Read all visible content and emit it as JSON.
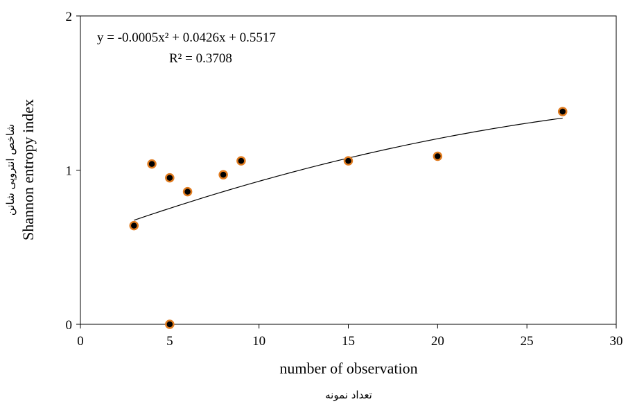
{
  "chart_data": {
    "type": "scatter",
    "xlabel": "number of observation",
    "xlabel_fa": "تعداد نمونه",
    "ylabel": "Shannon entropy index",
    "ylabel_fa": "شاخص انتروپی شانن",
    "xlim": [
      0,
      30
    ],
    "ylim": [
      0,
      2
    ],
    "xticks": [
      0,
      5,
      10,
      15,
      20,
      25,
      30
    ],
    "yticks": [
      0,
      1,
      2
    ],
    "grid": false,
    "points": [
      {
        "x": 3,
        "y": 0.64
      },
      {
        "x": 4,
        "y": 1.04
      },
      {
        "x": 5,
        "y": 0.95
      },
      {
        "x": 5,
        "y": 0.0
      },
      {
        "x": 6,
        "y": 0.86
      },
      {
        "x": 8,
        "y": 0.97
      },
      {
        "x": 9,
        "y": 1.06
      },
      {
        "x": 15,
        "y": 1.06
      },
      {
        "x": 20,
        "y": 1.09
      },
      {
        "x": 27,
        "y": 1.38
      }
    ],
    "marker_fill": "#000000",
    "marker_edge": "#e07b1f",
    "trendline": {
      "type": "polynomial",
      "coefficients": [
        -0.0005,
        0.0426,
        0.5517
      ],
      "x_range": [
        3,
        27
      ],
      "equation_text": "y = -0.0005x² + 0.0426x + 0.5517",
      "r2_text": "R² = 0.3708"
    }
  }
}
